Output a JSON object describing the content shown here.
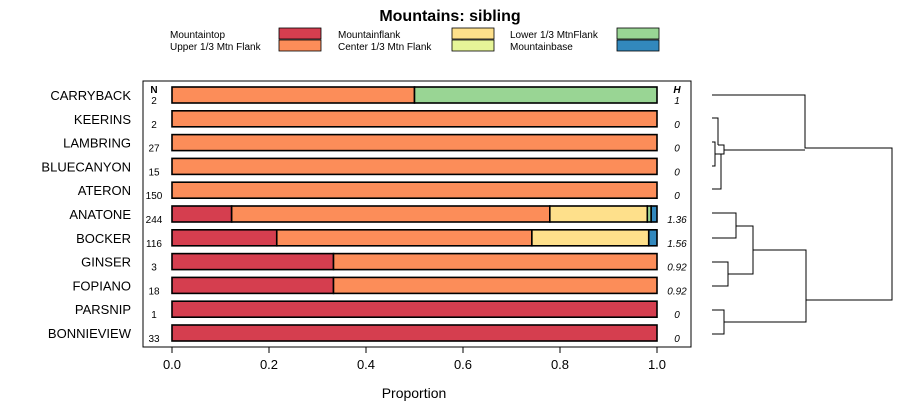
{
  "chart_data": {
    "type": "bar",
    "orientation": "horizontal",
    "stacked": true,
    "title": "Mountains: sibling",
    "xlabel": "Proportion",
    "ylabel": "",
    "xlim": [
      0,
      1
    ],
    "x_ticks": [
      "0.0",
      "0.2",
      "0.4",
      "0.6",
      "0.8",
      "1.0"
    ],
    "n_header": "N",
    "h_header": "H",
    "legend_position": "top",
    "series": [
      {
        "name": "Mountaintop",
        "color": "#d53e4f"
      },
      {
        "name": "Upper 1/3 Mtn Flank",
        "color": "#fc8d59"
      },
      {
        "name": "Mountainflank",
        "color": "#fee08b"
      },
      {
        "name": "Center 1/3 Mtn Flank",
        "color": "#e6f598"
      },
      {
        "name": "Lower 1/3 MtnFlank",
        "color": "#99d594"
      },
      {
        "name": "Mountainbase",
        "color": "#3288bd"
      }
    ],
    "categories": [
      "CARRYBACK",
      "KEERINS",
      "LAMBRING",
      "BLUECANYON",
      "ATERON",
      "ANATONE",
      "BOCKER",
      "GINSER",
      "FOPIANO",
      "PARSNIP",
      "BONNIEVIEW"
    ],
    "n_values": [
      "2",
      "2",
      "27",
      "15",
      "150",
      "244",
      "116",
      "3",
      "18",
      "1",
      "33"
    ],
    "h_values": [
      "1",
      "0",
      "0",
      "0",
      "0",
      "1.36",
      "1.56",
      "0.92",
      "0.92",
      "0",
      "0"
    ],
    "values": [
      [
        0,
        0.5,
        0,
        0,
        0.5,
        0
      ],
      [
        0,
        1,
        0,
        0,
        0,
        0
      ],
      [
        0,
        1,
        0,
        0,
        0,
        0
      ],
      [
        0,
        1,
        0,
        0,
        0,
        0
      ],
      [
        0,
        1,
        0,
        0,
        0,
        0
      ],
      [
        0.123,
        0.656,
        0.201,
        0,
        0.008,
        0.012
      ],
      [
        0.216,
        0.526,
        0.241,
        0,
        0,
        0.017
      ],
      [
        0.333,
        0.667,
        0,
        0,
        0,
        0
      ],
      [
        0.333,
        0.667,
        0,
        0,
        0,
        0
      ],
      [
        1,
        0,
        0,
        0,
        0,
        0
      ],
      [
        1,
        0,
        0,
        0,
        0,
        0
      ]
    ],
    "dendrogram": "clustering of the rows (CARRYBACK, KEERINS, LAMBRING, BLUECANYON, ATERON) vs (ANATONE, BOCKER, GINSER, FOPIANO) and (PARSNIP, BONNIEVIEW)"
  }
}
